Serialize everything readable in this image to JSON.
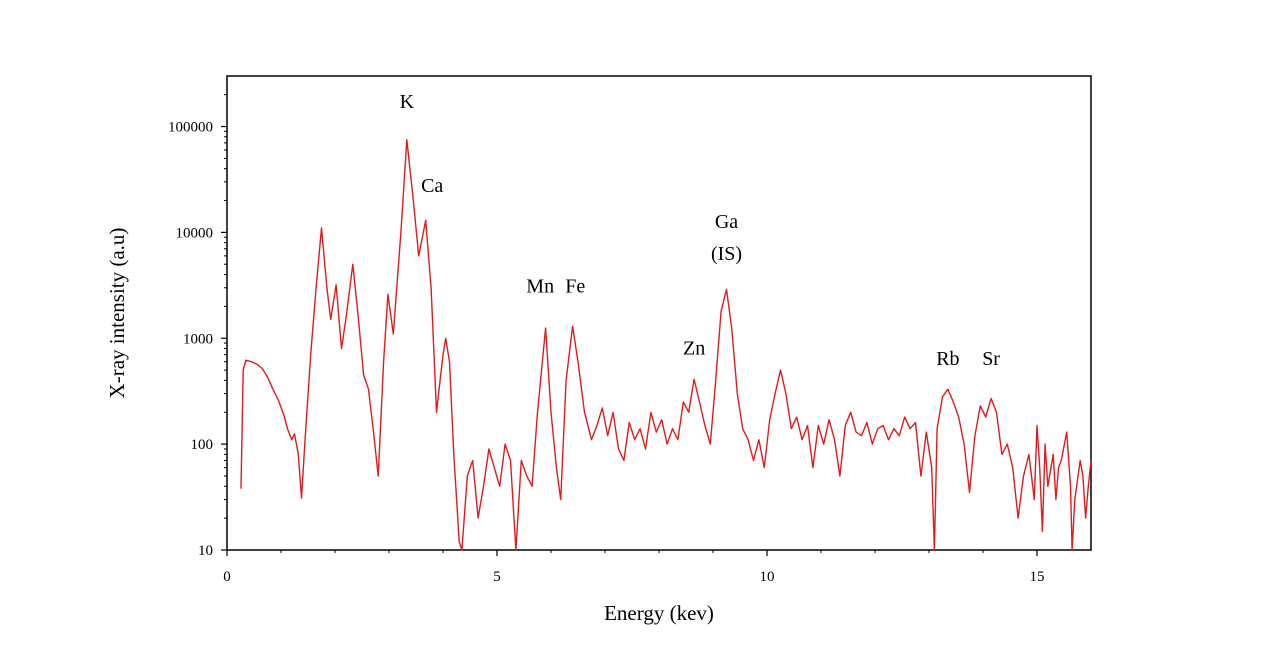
{
  "chart_data": {
    "type": "line",
    "title": "",
    "xlabel": "Energy (kev)",
    "ylabel": "X-ray intensity (a.u)",
    "xlim": [
      0,
      16
    ],
    "ylim": [
      10,
      300000
    ],
    "yscale": "log",
    "grid": false,
    "x_ticks": [
      {
        "value": 0,
        "label": "0"
      },
      {
        "value": 5,
        "label": "5"
      },
      {
        "value": 10,
        "label": "10"
      },
      {
        "value": 15,
        "label": "15"
      }
    ],
    "y_ticks": [
      {
        "value": 10,
        "label": "10"
      },
      {
        "value": 100,
        "label": "100"
      },
      {
        "value": 1000,
        "label": "1000"
      },
      {
        "value": 10000,
        "label": "10000"
      },
      {
        "value": 100000,
        "label": "100000"
      }
    ],
    "series": [
      {
        "color": "#e31a1c",
        "points": [
          [
            0.26,
            38
          ],
          [
            0.3,
            500
          ],
          [
            0.35,
            620
          ],
          [
            0.45,
            600
          ],
          [
            0.55,
            570
          ],
          [
            0.65,
            520
          ],
          [
            0.75,
            430
          ],
          [
            0.85,
            330
          ],
          [
            0.95,
            260
          ],
          [
            1.05,
            190
          ],
          [
            1.12,
            140
          ],
          [
            1.2,
            110
          ],
          [
            1.25,
            125
          ],
          [
            1.32,
            80
          ],
          [
            1.38,
            31
          ],
          [
            1.45,
            120
          ],
          [
            1.55,
            700
          ],
          [
            1.65,
            3000
          ],
          [
            1.75,
            11000
          ],
          [
            1.85,
            3000
          ],
          [
            1.92,
            1500
          ],
          [
            2.02,
            3200
          ],
          [
            2.12,
            800
          ],
          [
            2.2,
            1500
          ],
          [
            2.33,
            5000
          ],
          [
            2.43,
            1600
          ],
          [
            2.53,
            450
          ],
          [
            2.62,
            330
          ],
          [
            2.72,
            120
          ],
          [
            2.8,
            50
          ],
          [
            2.9,
            600
          ],
          [
            2.98,
            2600
          ],
          [
            3.08,
            1100
          ],
          [
            3.22,
            10000
          ],
          [
            3.33,
            75000
          ],
          [
            3.45,
            20000
          ],
          [
            3.55,
            6000
          ],
          [
            3.68,
            13000
          ],
          [
            3.78,
            3000
          ],
          [
            3.88,
            200
          ],
          [
            4.0,
            700
          ],
          [
            4.05,
            1000
          ],
          [
            4.12,
            600
          ],
          [
            4.2,
            80
          ],
          [
            4.3,
            12
          ],
          [
            4.35,
            9
          ],
          [
            4.45,
            50
          ],
          [
            4.55,
            70
          ],
          [
            4.65,
            20
          ],
          [
            4.75,
            40
          ],
          [
            4.85,
            90
          ],
          [
            4.95,
            60
          ],
          [
            5.05,
            40
          ],
          [
            5.15,
            100
          ],
          [
            5.25,
            70
          ],
          [
            5.35,
            10
          ],
          [
            5.45,
            70
          ],
          [
            5.55,
            50
          ],
          [
            5.65,
            40
          ],
          [
            5.75,
            200
          ],
          [
            5.9,
            1250
          ],
          [
            6.0,
            200
          ],
          [
            6.1,
            60
          ],
          [
            6.18,
            30
          ],
          [
            6.28,
            400
          ],
          [
            6.4,
            1300
          ],
          [
            6.5,
            600
          ],
          [
            6.62,
            200
          ],
          [
            6.75,
            110
          ],
          [
            6.85,
            150
          ],
          [
            6.95,
            220
          ],
          [
            7.05,
            120
          ],
          [
            7.15,
            200
          ],
          [
            7.25,
            90
          ],
          [
            7.35,
            70
          ],
          [
            7.45,
            160
          ],
          [
            7.55,
            110
          ],
          [
            7.65,
            140
          ],
          [
            7.75,
            90
          ],
          [
            7.85,
            200
          ],
          [
            7.95,
            130
          ],
          [
            8.05,
            170
          ],
          [
            8.15,
            100
          ],
          [
            8.25,
            140
          ],
          [
            8.35,
            110
          ],
          [
            8.45,
            250
          ],
          [
            8.55,
            200
          ],
          [
            8.65,
            410
          ],
          [
            8.75,
            250
          ],
          [
            8.85,
            150
          ],
          [
            8.95,
            100
          ],
          [
            9.05,
            400
          ],
          [
            9.15,
            1800
          ],
          [
            9.25,
            2900
          ],
          [
            9.35,
            1200
          ],
          [
            9.45,
            300
          ],
          [
            9.55,
            140
          ],
          [
            9.65,
            110
          ],
          [
            9.75,
            70
          ],
          [
            9.85,
            110
          ],
          [
            9.95,
            60
          ],
          [
            10.05,
            170
          ],
          [
            10.15,
            300
          ],
          [
            10.25,
            500
          ],
          [
            10.35,
            300
          ],
          [
            10.45,
            140
          ],
          [
            10.55,
            180
          ],
          [
            10.65,
            110
          ],
          [
            10.75,
            150
          ],
          [
            10.85,
            60
          ],
          [
            10.95,
            150
          ],
          [
            11.05,
            100
          ],
          [
            11.15,
            170
          ],
          [
            11.25,
            110
          ],
          [
            11.35,
            50
          ],
          [
            11.45,
            150
          ],
          [
            11.55,
            200
          ],
          [
            11.65,
            130
          ],
          [
            11.75,
            120
          ],
          [
            11.85,
            160
          ],
          [
            11.95,
            100
          ],
          [
            12.05,
            140
          ],
          [
            12.15,
            150
          ],
          [
            12.25,
            110
          ],
          [
            12.35,
            140
          ],
          [
            12.45,
            120
          ],
          [
            12.55,
            180
          ],
          [
            12.65,
            140
          ],
          [
            12.75,
            160
          ],
          [
            12.85,
            50
          ],
          [
            12.95,
            130
          ],
          [
            13.05,
            60
          ],
          [
            13.1,
            8
          ],
          [
            13.15,
            140
          ],
          [
            13.25,
            280
          ],
          [
            13.35,
            330
          ],
          [
            13.45,
            250
          ],
          [
            13.55,
            180
          ],
          [
            13.65,
            100
          ],
          [
            13.75,
            35
          ],
          [
            13.85,
            120
          ],
          [
            13.95,
            230
          ],
          [
            14.05,
            180
          ],
          [
            14.15,
            270
          ],
          [
            14.25,
            200
          ],
          [
            14.35,
            80
          ],
          [
            14.45,
            100
          ],
          [
            14.55,
            60
          ],
          [
            14.65,
            20
          ],
          [
            14.75,
            50
          ],
          [
            14.85,
            80
          ],
          [
            14.95,
            30
          ],
          [
            15.0,
            150
          ],
          [
            15.05,
            60
          ],
          [
            15.1,
            15
          ],
          [
            15.15,
            100
          ],
          [
            15.2,
            40
          ],
          [
            15.3,
            80
          ],
          [
            15.35,
            30
          ],
          [
            15.4,
            60
          ],
          [
            15.45,
            70
          ],
          [
            15.55,
            130
          ],
          [
            15.62,
            40
          ],
          [
            15.65,
            9
          ],
          [
            15.7,
            30
          ],
          [
            15.8,
            70
          ],
          [
            15.85,
            50
          ],
          [
            15.9,
            20
          ],
          [
            15.95,
            40
          ],
          [
            16.0,
            70
          ]
        ]
      }
    ],
    "annotations": [
      {
        "text": "K",
        "x": 3.33,
        "y": 150000
      },
      {
        "text": "Ca",
        "x": 3.8,
        "y": 24000
      },
      {
        "text": "Mn",
        "x": 5.8,
        "y": 2700
      },
      {
        "text": "Fe",
        "x": 6.45,
        "y": 2700
      },
      {
        "text": "Zn",
        "x": 8.65,
        "y": 700
      },
      {
        "text": "Ga",
        "x": 9.25,
        "y": 11000
      },
      {
        "text": "(IS)",
        "x": 9.25,
        "y": 5500
      },
      {
        "text": "Rb",
        "x": 13.35,
        "y": 560
      },
      {
        "text": "Sr",
        "x": 14.15,
        "y": 560
      }
    ],
    "style": {
      "line_color": "#e31a1c",
      "axis_color": "#000000",
      "text_color": "#000000"
    }
  }
}
